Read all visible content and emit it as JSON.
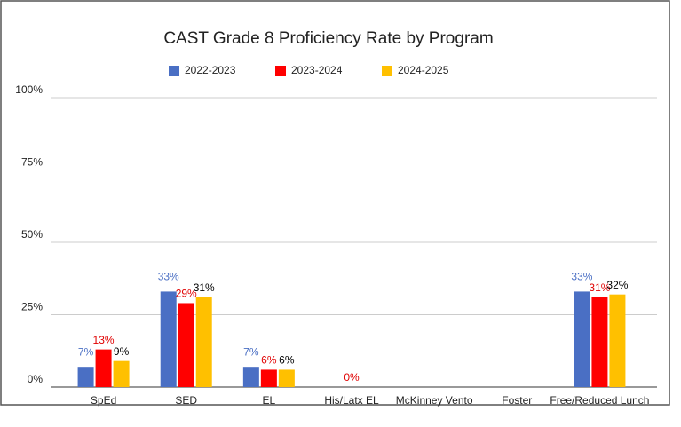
{
  "chart_data": {
    "type": "bar",
    "title": "CAST Grade 8 Proficiency Rate by Program",
    "categories": [
      "SpEd",
      "SED",
      "EL",
      "His/Latx EL",
      "McKinney Vento",
      "Foster",
      "Free/Reduced Lunch"
    ],
    "series": [
      {
        "name": "2022-2023",
        "color": "#4a6fc4",
        "label_color": "#4a6fc4",
        "values": [
          7,
          33,
          7,
          null,
          null,
          null,
          33
        ],
        "value_labels": [
          "7%",
          "33%",
          "7%",
          null,
          null,
          null,
          "33%"
        ]
      },
      {
        "name": "2023-2024",
        "color": "#ff0000",
        "label_color": "#e00000",
        "values": [
          13,
          29,
          6,
          0,
          null,
          null,
          31
        ],
        "value_labels": [
          "13%",
          "29%",
          "6%",
          "0%",
          null,
          null,
          "31%"
        ]
      },
      {
        "name": "2024-2025",
        "color": "#ffc000",
        "label_color": "#000000",
        "values": [
          9,
          31,
          6,
          null,
          null,
          null,
          32
        ],
        "value_labels": [
          "9%",
          "31%",
          "6%",
          null,
          null,
          null,
          "32%"
        ]
      }
    ],
    "ylim": [
      0,
      100
    ],
    "yticks": [
      {
        "value": 0,
        "label": "0%"
      },
      {
        "value": 25,
        "label": "25%"
      },
      {
        "value": 50,
        "label": "50%"
      },
      {
        "value": 75,
        "label": "75%"
      },
      {
        "value": 100,
        "label": "100%"
      }
    ],
    "grid": true,
    "legend": "top"
  }
}
